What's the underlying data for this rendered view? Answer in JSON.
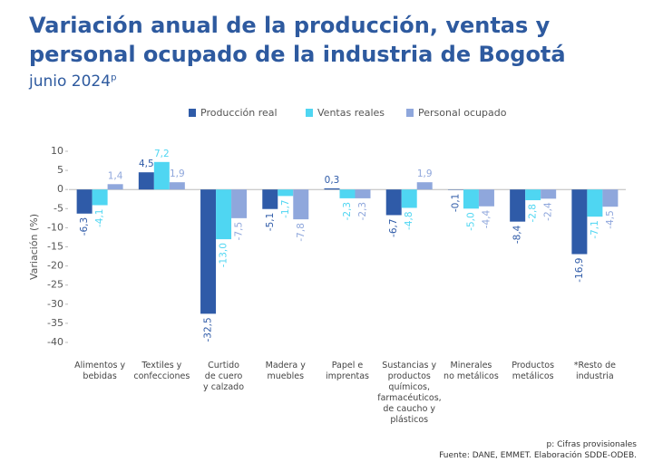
{
  "chart_data": {
    "type": "bar",
    "title": [
      "Variación anual de la producción, ventas y",
      "personal ocupado de la industria de Bogotá"
    ],
    "subtitle": "junio 2024",
    "subtitle_superscript": "p",
    "y_label": "Variación (%)",
    "categories": [
      "Alimentos y\nbebidas",
      "Textiles y\nconfecciones",
      "Curtido\nde cuero\ny calzado",
      "Madera y\nmuebles",
      "Papel e\nimprentas",
      "Sustancias y\nproductos\nquímicos,\nfarmacéuticos,\nde caucho y\nplásticos",
      "Minerales\nno metálicos",
      "Productos\nmetálicos",
      "*Resto de\nindustria"
    ],
    "series": [
      {
        "name": "Producción real",
        "color": "#2f5ba8",
        "values": [
          -6.3,
          4.5,
          -32.5,
          -5.1,
          0.3,
          -6.7,
          -0.1,
          -8.4,
          -16.9
        ],
        "value_labels": [
          "-6,3",
          "4,5",
          "-32,5",
          "-5,1",
          "0,3",
          "-6,7",
          "-0,1",
          "-8,4",
          "-16,9"
        ]
      },
      {
        "name": "Ventas reales",
        "color": "#4fd6f2",
        "values": [
          -4.1,
          7.2,
          -13.0,
          -1.7,
          -2.3,
          -4.8,
          -5.0,
          -2.8,
          -7.1
        ],
        "value_labels": [
          "-4,1",
          "7,2",
          "-13,0",
          "-1,7",
          "-2,3",
          "-4,8",
          "-5,0",
          "-2,8",
          "-7,1"
        ]
      },
      {
        "name": "Personal ocupado",
        "color": "#8fa7dc",
        "values": [
          1.4,
          1.9,
          -7.5,
          -7.8,
          -2.3,
          1.9,
          -4.4,
          -2.4,
          -4.5
        ],
        "value_labels": [
          "1,4",
          "1,9",
          "-7,5",
          "-7,8",
          "-2,3",
          "1,9",
          "-4,4",
          "-2,4",
          "-4,5"
        ]
      }
    ],
    "ylim": [
      -40,
      10
    ],
    "yticks": [
      10,
      5,
      0,
      -5,
      -10,
      -15,
      -20,
      -25,
      -30,
      -35,
      -40
    ],
    "legend": "top",
    "note": "p: Cifras provisionales",
    "source": "Fuente: DANE, EMMET. Elaboración SDDE-ODEB."
  }
}
